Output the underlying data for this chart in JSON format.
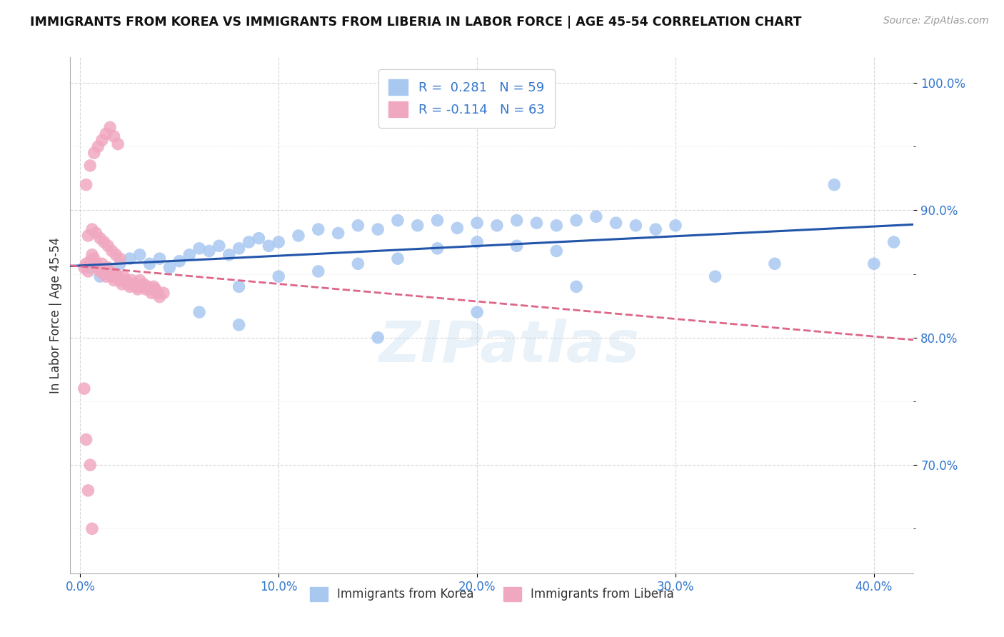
{
  "title": "IMMIGRANTS FROM KOREA VS IMMIGRANTS FROM LIBERIA IN LABOR FORCE | AGE 45-54 CORRELATION CHART",
  "source": "Source: ZipAtlas.com",
  "ylabel": "In Labor Force | Age 45-54",
  "xlim": [
    -0.005,
    0.42
  ],
  "ylim": [
    0.615,
    1.02
  ],
  "korea_R": 0.281,
  "korea_N": 59,
  "liberia_R": -0.114,
  "liberia_N": 63,
  "korea_color": "#a8c8f0",
  "liberia_color": "#f0a8c0",
  "korea_line_color": "#2255aa",
  "liberia_line_color": "#dd6688",
  "text_color": "#3377cc",
  "background_color": "#ffffff",
  "watermark": "ZIPatlas",
  "korea_scatter_x": [
    0.005,
    0.01,
    0.015,
    0.02,
    0.025,
    0.03,
    0.035,
    0.04,
    0.045,
    0.05,
    0.055,
    0.06,
    0.065,
    0.07,
    0.075,
    0.08,
    0.085,
    0.09,
    0.095,
    0.1,
    0.11,
    0.12,
    0.13,
    0.14,
    0.15,
    0.16,
    0.17,
    0.18,
    0.19,
    0.2,
    0.21,
    0.22,
    0.23,
    0.24,
    0.25,
    0.26,
    0.27,
    0.28,
    0.29,
    0.3,
    0.08,
    0.1,
    0.12,
    0.14,
    0.16,
    0.18,
    0.2,
    0.22,
    0.24,
    0.32,
    0.35,
    0.38,
    0.4,
    0.41,
    0.06,
    0.08,
    0.15,
    0.2,
    0.25
  ],
  "korea_scatter_y": [
    0.855,
    0.848,
    0.852,
    0.858,
    0.862,
    0.865,
    0.858,
    0.862,
    0.855,
    0.86,
    0.865,
    0.87,
    0.868,
    0.872,
    0.865,
    0.87,
    0.875,
    0.878,
    0.872,
    0.875,
    0.88,
    0.885,
    0.882,
    0.888,
    0.885,
    0.892,
    0.888,
    0.892,
    0.886,
    0.89,
    0.888,
    0.892,
    0.89,
    0.888,
    0.892,
    0.895,
    0.89,
    0.888,
    0.885,
    0.888,
    0.84,
    0.848,
    0.852,
    0.858,
    0.862,
    0.87,
    0.875,
    0.872,
    0.868,
    0.848,
    0.858,
    0.92,
    0.858,
    0.875,
    0.82,
    0.81,
    0.8,
    0.82,
    0.84
  ],
  "liberia_scatter_x": [
    0.002,
    0.003,
    0.004,
    0.005,
    0.006,
    0.007,
    0.008,
    0.009,
    0.01,
    0.011,
    0.012,
    0.013,
    0.014,
    0.015,
    0.016,
    0.017,
    0.018,
    0.019,
    0.02,
    0.021,
    0.022,
    0.023,
    0.024,
    0.025,
    0.026,
    0.027,
    0.028,
    0.029,
    0.03,
    0.031,
    0.032,
    0.033,
    0.034,
    0.035,
    0.036,
    0.037,
    0.038,
    0.039,
    0.04,
    0.042,
    0.003,
    0.005,
    0.007,
    0.009,
    0.011,
    0.013,
    0.015,
    0.017,
    0.019,
    0.004,
    0.006,
    0.008,
    0.01,
    0.012,
    0.014,
    0.016,
    0.018,
    0.02,
    0.002,
    0.003,
    0.004,
    0.005,
    0.006
  ],
  "liberia_scatter_y": [
    0.855,
    0.858,
    0.852,
    0.86,
    0.865,
    0.862,
    0.858,
    0.855,
    0.852,
    0.858,
    0.85,
    0.848,
    0.855,
    0.852,
    0.848,
    0.845,
    0.85,
    0.848,
    0.845,
    0.842,
    0.848,
    0.845,
    0.842,
    0.84,
    0.845,
    0.842,
    0.84,
    0.838,
    0.845,
    0.84,
    0.842,
    0.838,
    0.84,
    0.838,
    0.835,
    0.84,
    0.838,
    0.835,
    0.832,
    0.835,
    0.92,
    0.935,
    0.945,
    0.95,
    0.955,
    0.96,
    0.965,
    0.958,
    0.952,
    0.88,
    0.885,
    0.882,
    0.878,
    0.875,
    0.872,
    0.868,
    0.865,
    0.862,
    0.76,
    0.72,
    0.68,
    0.7,
    0.65
  ]
}
